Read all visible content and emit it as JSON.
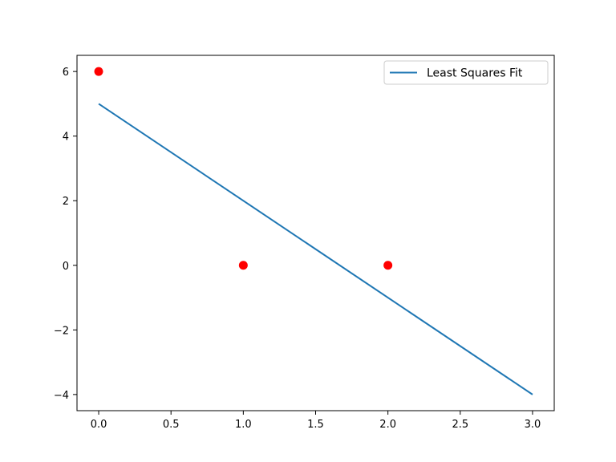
{
  "chart_data": {
    "type": "line",
    "title": "",
    "xlabel": "",
    "ylabel": "",
    "xlim": [
      -0.15,
      3.15
    ],
    "ylim": [
      -4.5,
      6.5
    ],
    "xticks": [
      0.0,
      0.5,
      1.0,
      1.5,
      2.0,
      2.5,
      3.0
    ],
    "xtick_labels": [
      "0.0",
      "0.5",
      "1.0",
      "1.5",
      "2.0",
      "2.5",
      "3.0"
    ],
    "yticks": [
      -4,
      -2,
      0,
      2,
      4,
      6
    ],
    "ytick_labels": [
      "−4",
      "−2",
      "0",
      "2",
      "4",
      "6"
    ],
    "grid": false,
    "legend_position": "top-right",
    "series": [
      {
        "name": "Least Squares Fit",
        "type": "line",
        "color": "#1f77b4",
        "x": [
          0,
          3
        ],
        "y": [
          5,
          -4
        ]
      },
      {
        "type": "scatter",
        "color": "#ff0000",
        "x": [
          0,
          1,
          2
        ],
        "y": [
          6,
          0,
          0
        ]
      }
    ]
  }
}
